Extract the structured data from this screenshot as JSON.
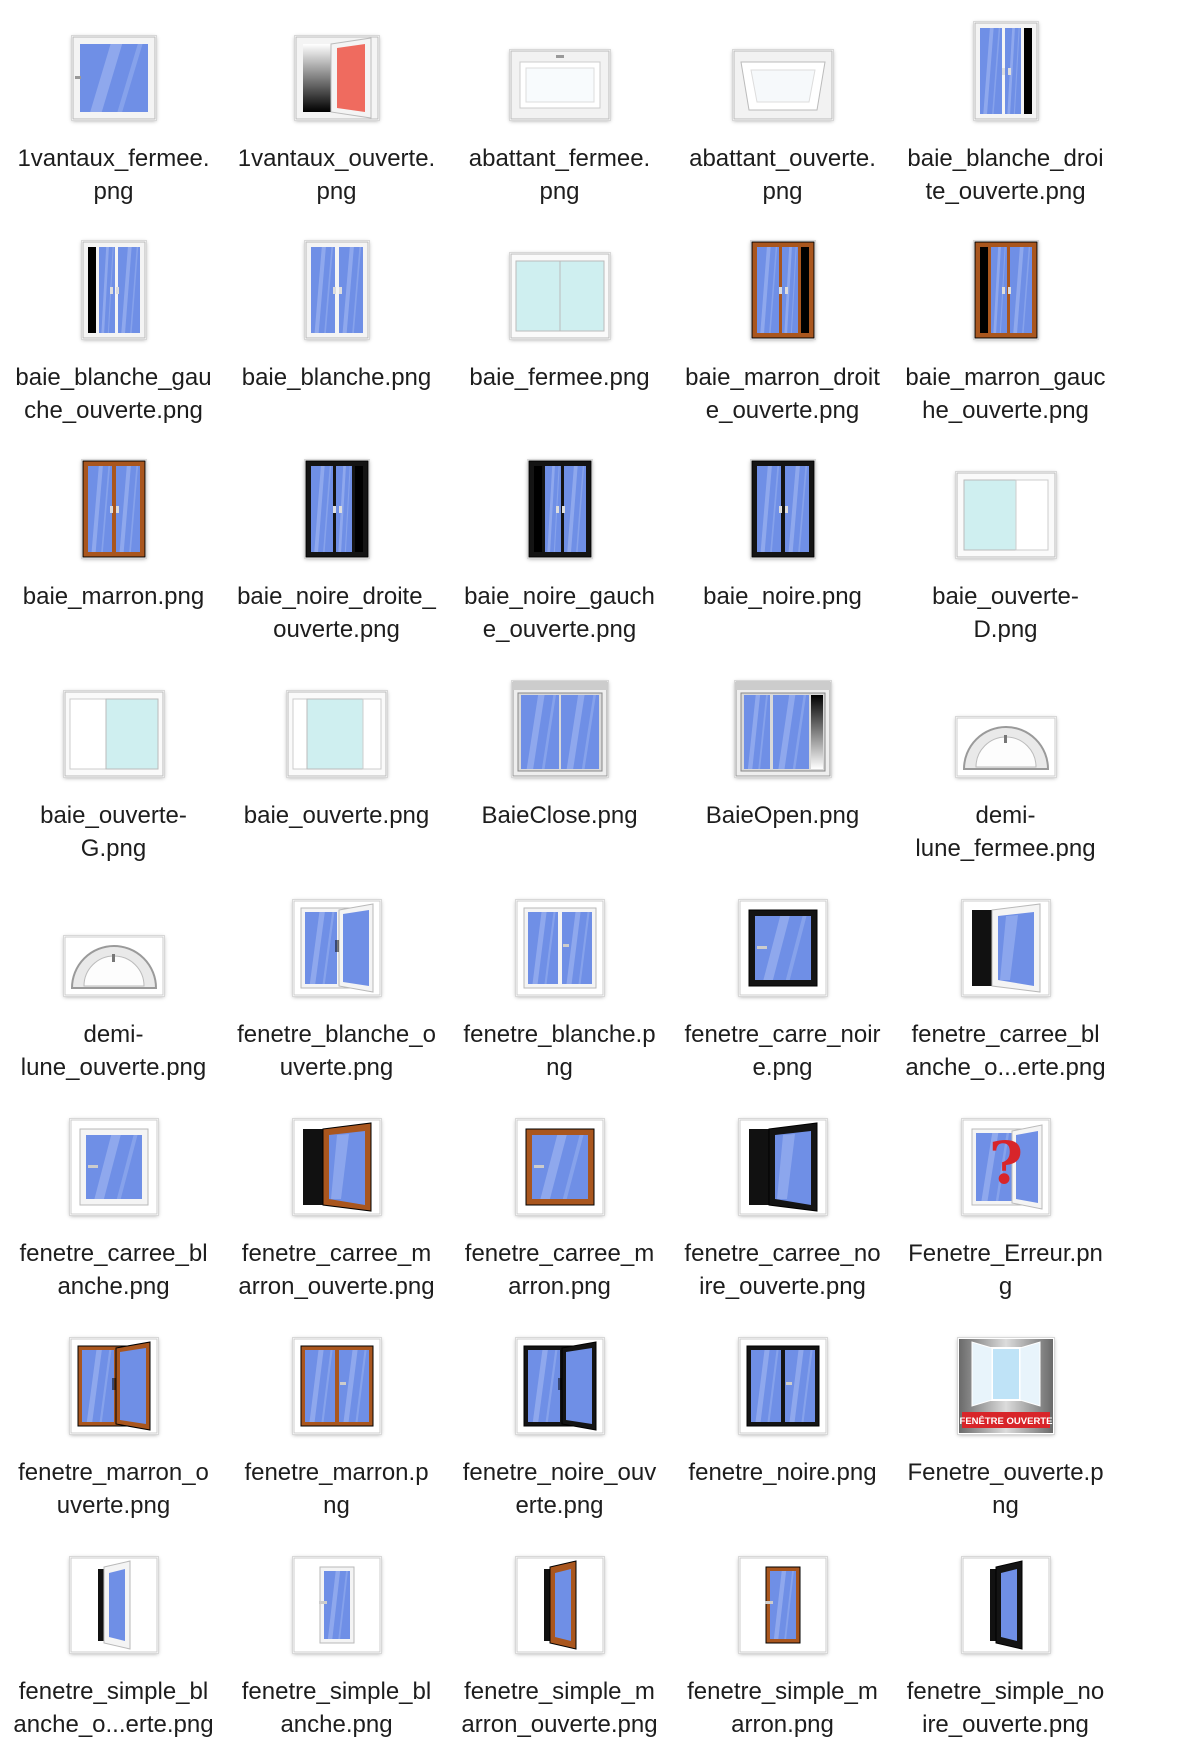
{
  "files": [
    {
      "name": "1vantaux_fermee.png",
      "label_lines": [
        "1vantaux_fermee.",
        "png"
      ],
      "icon": "window-single-closed-icon",
      "frame": "white",
      "shape": "single",
      "open": "none"
    },
    {
      "name": "1vantaux_ouverte.png",
      "label_lines": [
        "1vantaux_ouverte.",
        "png"
      ],
      "icon": "window-single-open-red-icon",
      "frame": "white",
      "shape": "single-open-red",
      "open": "right"
    },
    {
      "name": "abattant_fermee.png",
      "label_lines": [
        "abattant_fermee.",
        "png"
      ],
      "icon": "tilt-window-closed-icon",
      "frame": "white",
      "shape": "abattant",
      "open": "none"
    },
    {
      "name": "abattant_ouverte.png",
      "label_lines": [
        "abattant_ouverte.",
        "png"
      ],
      "icon": "tilt-window-open-icon",
      "frame": "white",
      "shape": "abattant-open",
      "open": "tilt"
    },
    {
      "name": "baie_blanche_droite_ouverte.png",
      "label_lines": [
        "baie_blanche_droi",
        "te_ouverte.png"
      ],
      "icon": "bay-white-right-open-icon",
      "frame": "white",
      "shape": "tall-double",
      "open": "right"
    },
    {
      "name": "baie_blanche_gauche_ouverte.png",
      "label_lines": [
        "baie_blanche_gau",
        "che_ouverte.png"
      ],
      "icon": "bay-white-left-open-icon",
      "frame": "white",
      "shape": "tall-double",
      "open": "left"
    },
    {
      "name": "baie_blanche.png",
      "label_lines": [
        "baie_blanche.png"
      ],
      "icon": "bay-white-icon",
      "frame": "white",
      "shape": "tall-double",
      "open": "none"
    },
    {
      "name": "baie_fermee.png",
      "label_lines": [
        "baie_fermee.png"
      ],
      "icon": "sliding-bay-closed-icon",
      "frame": "white",
      "shape": "sliding",
      "open": "none"
    },
    {
      "name": "baie_marron_droite_ouverte.png",
      "label_lines": [
        "baie_marron_droit",
        "e_ouverte.png"
      ],
      "icon": "bay-brown-right-open-icon",
      "frame": "brown",
      "shape": "tall-double",
      "open": "right"
    },
    {
      "name": "baie_marron_gauche_ouverte.png",
      "label_lines": [
        "baie_marron_gauc",
        "he_ouverte.png"
      ],
      "icon": "bay-brown-left-open-icon",
      "frame": "brown",
      "shape": "tall-double",
      "open": "left"
    },
    {
      "name": "baie_marron.png",
      "label_lines": [
        "baie_marron.png"
      ],
      "icon": "bay-brown-icon",
      "frame": "brown",
      "shape": "tall-double",
      "open": "none"
    },
    {
      "name": "baie_noire_droite_ouverte.png",
      "label_lines": [
        "baie_noire_droite_",
        "ouverte.png"
      ],
      "icon": "bay-black-right-open-icon",
      "frame": "black",
      "shape": "tall-double",
      "open": "right"
    },
    {
      "name": "baie_noire_gauche_ouverte.png",
      "label_lines": [
        "baie_noire_gauch",
        "e_ouverte.png"
      ],
      "icon": "bay-black-left-open-icon",
      "frame": "black",
      "shape": "tall-double",
      "open": "left"
    },
    {
      "name": "baie_noire.png",
      "label_lines": [
        "baie_noire.png"
      ],
      "icon": "bay-black-icon",
      "frame": "black",
      "shape": "tall-double",
      "open": "none"
    },
    {
      "name": "baie_ouverte-D.png",
      "label_lines": [
        "baie_ouverte-",
        "D.png"
      ],
      "icon": "sliding-bay-open-right-icon",
      "frame": "white",
      "shape": "sliding-open-right",
      "open": "right"
    },
    {
      "name": "baie_ouverte-G.png",
      "label_lines": [
        "baie_ouverte-",
        "G.png"
      ],
      "icon": "sliding-bay-open-left-icon",
      "frame": "white",
      "shape": "sliding-open-left",
      "open": "left"
    },
    {
      "name": "baie_ouverte.png",
      "label_lines": [
        "baie_ouverte.png"
      ],
      "icon": "sliding-bay-open-icon",
      "frame": "white",
      "shape": "sliding-open-both",
      "open": "both"
    },
    {
      "name": "BaieClose.png",
      "label_lines": [
        "BaieClose.png"
      ],
      "icon": "bay-door-closed-icon",
      "frame": "white",
      "shape": "baie-big",
      "open": "none"
    },
    {
      "name": "BaieOpen.png",
      "label_lines": [
        "BaieOpen.png"
      ],
      "icon": "bay-door-open-icon",
      "frame": "white",
      "shape": "baie-big-open",
      "open": "right"
    },
    {
      "name": "demi-lune_fermee.png",
      "label_lines": [
        "demi-",
        "lune_fermee.png"
      ],
      "icon": "half-moon-closed-icon",
      "frame": "white",
      "shape": "half-moon",
      "open": "none"
    },
    {
      "name": "demi-lune_ouverte.png",
      "label_lines": [
        "demi-",
        "lune_ouverte.png"
      ],
      "icon": "half-moon-open-icon",
      "frame": "white",
      "shape": "half-moon-open",
      "open": "tilt"
    },
    {
      "name": "fenetre_blanche_ouverte.png",
      "label_lines": [
        "fenetre_blanche_o",
        "uverte.png"
      ],
      "icon": "window-white-open-icon",
      "frame": "white",
      "shape": "double",
      "open": "right"
    },
    {
      "name": "fenetre_blanche.png",
      "label_lines": [
        "fenetre_blanche.p",
        "ng"
      ],
      "icon": "window-white-icon",
      "frame": "white",
      "shape": "double",
      "open": "none"
    },
    {
      "name": "fenetre_carre_noire.png",
      "label_lines": [
        "fenetre_carre_noir",
        "e.png"
      ],
      "icon": "square-window-black-icon",
      "frame": "black",
      "shape": "square",
      "open": "none"
    },
    {
      "name": "fenetre_carree_blanche_ouverte.png",
      "label_lines": [
        "fenetre_carree_bl",
        "anche_o...erte.png"
      ],
      "icon": "square-window-white-open-icon",
      "frame": "white",
      "shape": "square-open",
      "open": "right"
    },
    {
      "name": "fenetre_carree_blanche.png",
      "label_lines": [
        "fenetre_carree_bl",
        "anche.png"
      ],
      "icon": "square-window-white-icon",
      "frame": "white",
      "shape": "square",
      "open": "none"
    },
    {
      "name": "fenetre_carree_marron_ouverte.png",
      "label_lines": [
        "fenetre_carree_m",
        "arron_ouverte.png"
      ],
      "icon": "square-window-brown-open-icon",
      "frame": "brown",
      "shape": "square-open",
      "open": "right"
    },
    {
      "name": "fenetre_carree_marron.png",
      "label_lines": [
        "fenetre_carree_m",
        "arron.png"
      ],
      "icon": "square-window-brown-icon",
      "frame": "brown",
      "shape": "square",
      "open": "none"
    },
    {
      "name": "fenetre_carree_noire_ouverte.png",
      "label_lines": [
        "fenetre_carree_no",
        "ire_ouverte.png"
      ],
      "icon": "square-window-black-open-icon",
      "frame": "black",
      "shape": "square-open",
      "open": "right"
    },
    {
      "name": "Fenetre_Erreur.png",
      "label_lines": [
        "Fenetre_Erreur.pn",
        "g"
      ],
      "icon": "window-error-question-icon",
      "frame": "white",
      "shape": "error",
      "open": "right"
    },
    {
      "name": "fenetre_marron_ouverte.png",
      "label_lines": [
        "fenetre_marron_o",
        "uverte.png"
      ],
      "icon": "window-brown-open-icon",
      "frame": "brown",
      "shape": "double",
      "open": "right"
    },
    {
      "name": "fenetre_marron.png",
      "label_lines": [
        "fenetre_marron.p",
        "ng"
      ],
      "icon": "window-brown-icon",
      "frame": "brown",
      "shape": "double",
      "open": "none"
    },
    {
      "name": "fenetre_noire_ouverte.png",
      "label_lines": [
        "fenetre_noire_ouv",
        "erte.png"
      ],
      "icon": "window-black-open-icon",
      "frame": "black",
      "shape": "double",
      "open": "right"
    },
    {
      "name": "fenetre_noire.png",
      "label_lines": [
        "fenetre_noire.png"
      ],
      "icon": "window-black-icon",
      "frame": "black",
      "shape": "double",
      "open": "none"
    },
    {
      "name": "Fenetre_ouverte.png",
      "label_lines": [
        "Fenetre_ouverte.p",
        "ng"
      ],
      "icon": "open-window-photo-icon",
      "frame": "white",
      "shape": "banner",
      "open": "both",
      "banner_text": "FENÊTRE OUVERTE"
    },
    {
      "name": "fenetre_simple_blanche_ouverte.png",
      "label_lines": [
        "fenetre_simple_bl",
        "anche_o...erte.png"
      ],
      "icon": "narrow-window-white-open-icon",
      "frame": "white",
      "shape": "narrow-open",
      "open": "right"
    },
    {
      "name": "fenetre_simple_blanche.png",
      "label_lines": [
        "fenetre_simple_bl",
        "anche.png"
      ],
      "icon": "narrow-window-white-icon",
      "frame": "white",
      "shape": "narrow",
      "open": "none"
    },
    {
      "name": "fenetre_simple_marron_ouverte.png",
      "label_lines": [
        "fenetre_simple_m",
        "arron_ouverte.png"
      ],
      "icon": "narrow-window-brown-open-icon",
      "frame": "brown",
      "shape": "narrow-open",
      "open": "right"
    },
    {
      "name": "fenetre_simple_marron.png",
      "label_lines": [
        "fenetre_simple_m",
        "arron.png"
      ],
      "icon": "narrow-window-brown-icon",
      "frame": "brown",
      "shape": "narrow",
      "open": "none"
    },
    {
      "name": "fenetre_simple_noire_ouverte.png",
      "label_lines": [
        "fenetre_simple_no",
        "ire_ouverte.png"
      ],
      "icon": "narrow-window-black-open-icon",
      "frame": "black",
      "shape": "narrow-open",
      "open": "right"
    }
  ],
  "colors": {
    "glass": "#6f8fe6",
    "glass_light": "#a9bdf3",
    "white_frame": "#f4f4f4",
    "brown_frame": "#a9561e",
    "black_frame": "#141414",
    "sliding_glass": "#cfeff0",
    "error_red": "#d8252a",
    "red_pane": "#ef6b5f"
  }
}
